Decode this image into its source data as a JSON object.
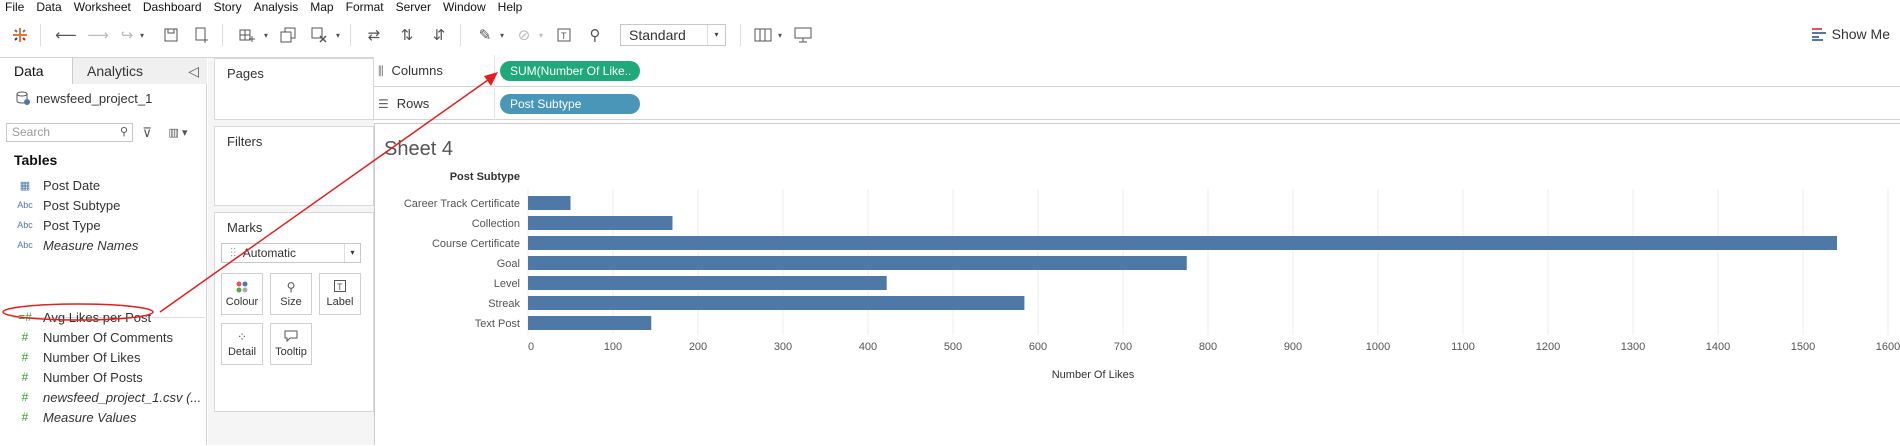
{
  "menu": [
    "File",
    "Data",
    "Worksheet",
    "Dashboard",
    "Story",
    "Analysis",
    "Map",
    "Format",
    "Server",
    "Window",
    "Help"
  ],
  "toolbar": {
    "fit_label": "Standard",
    "show_me_label": "Show Me"
  },
  "data_pane": {
    "tab_data": "Data",
    "tab_analytics": "Analytics",
    "collapse_icon": "◁",
    "datasource": "newsfeed_project_1",
    "search_placeholder": "Search",
    "tables_heading": "Tables",
    "fields": [
      {
        "label": "Post Date",
        "type": "date",
        "icon": "▦"
      },
      {
        "label": "Post Subtype",
        "type": "dimension",
        "icon": "Abc"
      },
      {
        "label": "Post Type",
        "type": "dimension",
        "icon": "Abc"
      },
      {
        "label": "Measure Names",
        "type": "dimension",
        "icon": "Abc",
        "italic": true
      },
      {
        "label": "Avg Likes per Post",
        "type": "measure",
        "icon": "=#"
      },
      {
        "label": "Number Of Comments",
        "type": "measure",
        "icon": "#"
      },
      {
        "label": "Number Of Likes",
        "type": "measure",
        "icon": "#",
        "highlighted": true
      },
      {
        "label": "Number Of Posts",
        "type": "measure",
        "icon": "#"
      },
      {
        "label": "newsfeed_project_1.csv (...",
        "type": "measure",
        "icon": "#",
        "italic": true
      },
      {
        "label": "Measure Values",
        "type": "measure",
        "icon": "#",
        "italic": true
      }
    ]
  },
  "cards": {
    "pages": "Pages",
    "filters": "Filters",
    "marks": "Marks",
    "marks_type": "Automatic",
    "marks_buttons": [
      "Colour",
      "Size",
      "Label",
      "Detail",
      "Tooltip"
    ]
  },
  "shelves": {
    "columns_label": "Columns",
    "columns_pill": "SUM(Number Of Like..",
    "rows_label": "Rows",
    "rows_pill": "Post Subtype"
  },
  "colors": {
    "bar": "#4e79a7",
    "annotation": "#e02020",
    "pill_green": "#1fa97b",
    "pill_blue": "#4a96b8"
  },
  "sheet_title": "Sheet 4",
  "chart_data": {
    "type": "bar",
    "orientation": "horizontal",
    "row_header": "Post Subtype",
    "categories": [
      "Career Track Certificate",
      "Collection",
      "Course Certificate",
      "Goal",
      "Level",
      "Streak",
      "Text Post"
    ],
    "values": [
      50,
      170,
      1540,
      775,
      422,
      584,
      145
    ],
    "xlabel": "Number Of Likes",
    "xlim": [
      0,
      1600
    ],
    "xticks": [
      0,
      100,
      200,
      300,
      400,
      500,
      600,
      700,
      800,
      900,
      1000,
      1100,
      1200,
      1300,
      1400,
      1500,
      1600
    ],
    "grid": true
  }
}
